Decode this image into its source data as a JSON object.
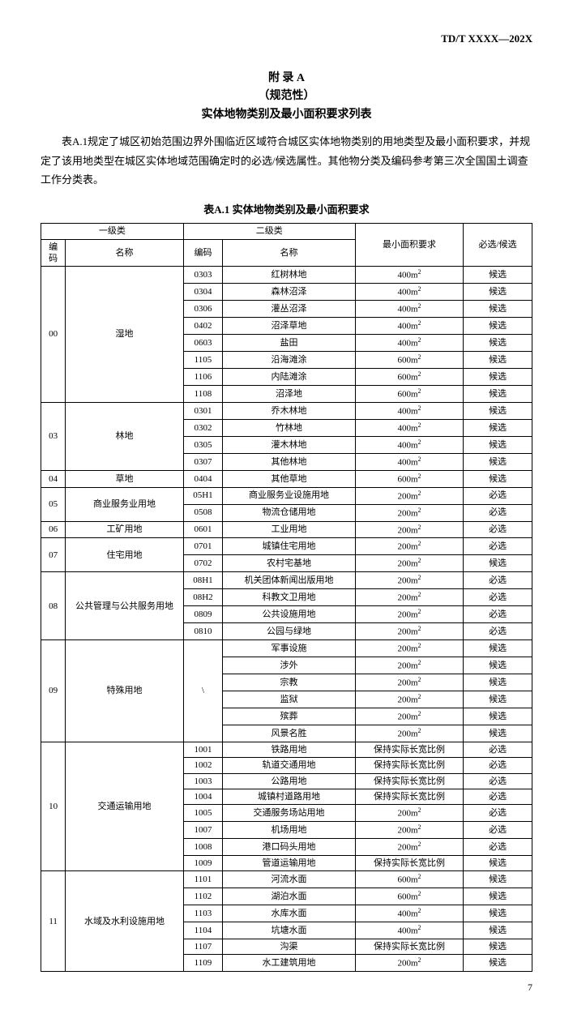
{
  "doc_number": "TD/T XXXX—202X",
  "appendix": {
    "line1": "附  录  A",
    "line2": "（规范性）",
    "line3": "实体地物类别及最小面积要求列表"
  },
  "intro": "表A.1规定了城区初始范围边界外围临近区域符合城区实体地物类别的用地类型及最小面积要求，并规定了该用地类型在城区实体地域范围确定时的必选/候选属性。其他物分类及编码参考第三次全国国土调查工作分类表。",
  "table_caption": "表A.1  实体地物类别及最小面积要求",
  "headers": {
    "level1": "一级类",
    "level2": "二级类",
    "code": "编码",
    "name": "名称",
    "area": "最小面积要求",
    "select": "必选/候选"
  },
  "groups": [
    {
      "code": "00",
      "name": "湿地",
      "rows": [
        {
          "c": "0303",
          "n": "红树林地",
          "a": "400m²",
          "s": "候选"
        },
        {
          "c": "0304",
          "n": "森林沼泽",
          "a": "400m²",
          "s": "候选"
        },
        {
          "c": "0306",
          "n": "灌丛沼泽",
          "a": "400m²",
          "s": "候选"
        },
        {
          "c": "0402",
          "n": "沼泽草地",
          "a": "400m²",
          "s": "候选"
        },
        {
          "c": "0603",
          "n": "盐田",
          "a": "400m²",
          "s": "候选"
        },
        {
          "c": "1105",
          "n": "沿海滩涂",
          "a": "600m²",
          "s": "候选"
        },
        {
          "c": "1106",
          "n": "内陆滩涂",
          "a": "600m²",
          "s": "候选"
        },
        {
          "c": "1108",
          "n": "沼泽地",
          "a": "600m²",
          "s": "候选"
        }
      ]
    },
    {
      "code": "03",
      "name": "林地",
      "rows": [
        {
          "c": "0301",
          "n": "乔木林地",
          "a": "400m²",
          "s": "候选"
        },
        {
          "c": "0302",
          "n": "竹林地",
          "a": "400m²",
          "s": "候选"
        },
        {
          "c": "0305",
          "n": "灌木林地",
          "a": "400m²",
          "s": "候选"
        },
        {
          "c": "0307",
          "n": "其他林地",
          "a": "400m²",
          "s": "候选"
        }
      ]
    },
    {
      "code": "04",
      "name": "草地",
      "rows": [
        {
          "c": "0404",
          "n": "其他草地",
          "a": "600m²",
          "s": "候选"
        }
      ]
    },
    {
      "code": "05",
      "name": "商业服务业用地",
      "rows": [
        {
          "c": "05H1",
          "n": "商业服务业设施用地",
          "a": "200m²",
          "s": "必选"
        },
        {
          "c": "0508",
          "n": "物流仓储用地",
          "a": "200m²",
          "s": "必选"
        }
      ]
    },
    {
      "code": "06",
      "name": "工矿用地",
      "rows": [
        {
          "c": "0601",
          "n": "工业用地",
          "a": "200m²",
          "s": "必选"
        }
      ]
    },
    {
      "code": "07",
      "name": "住宅用地",
      "rows": [
        {
          "c": "0701",
          "n": "城镇住宅用地",
          "a": "200m²",
          "s": "必选"
        },
        {
          "c": "0702",
          "n": "农村宅基地",
          "a": "200m²",
          "s": "候选"
        }
      ]
    },
    {
      "code": "08",
      "name": "公共管理与公共服务用地",
      "rows": [
        {
          "c": "08H1",
          "n": "机关团体新闻出版用地",
          "a": "200m²",
          "s": "必选"
        },
        {
          "c": "08H2",
          "n": "科教文卫用地",
          "a": "200m²",
          "s": "必选"
        },
        {
          "c": "0809",
          "n": "公共设施用地",
          "a": "200m²",
          "s": "必选"
        },
        {
          "c": "0810",
          "n": "公园与绿地",
          "a": "200m²",
          "s": "必选"
        }
      ]
    },
    {
      "code": "09",
      "name": "特殊用地",
      "l2code": "\\",
      "rows": [
        {
          "c": "",
          "n": "军事设施",
          "a": "200m²",
          "s": "候选"
        },
        {
          "c": "",
          "n": "涉外",
          "a": "200m²",
          "s": "候选"
        },
        {
          "c": "",
          "n": "宗教",
          "a": "200m²",
          "s": "候选"
        },
        {
          "c": "",
          "n": "监狱",
          "a": "200m²",
          "s": "候选"
        },
        {
          "c": "",
          "n": "殡葬",
          "a": "200m²",
          "s": "候选"
        },
        {
          "c": "",
          "n": "风景名胜",
          "a": "200m²",
          "s": "候选"
        }
      ]
    },
    {
      "code": "10",
      "name": "交通运输用地",
      "rows": [
        {
          "c": "1001",
          "n": "铁路用地",
          "a": "保持实际长宽比例",
          "s": "必选"
        },
        {
          "c": "1002",
          "n": "轨道交通用地",
          "a": "保持实际长宽比例",
          "s": "必选"
        },
        {
          "c": "1003",
          "n": "公路用地",
          "a": "保持实际长宽比例",
          "s": "必选"
        },
        {
          "c": "1004",
          "n": "城镇村道路用地",
          "a": "保持实际长宽比例",
          "s": "必选"
        },
        {
          "c": "1005",
          "n": "交通服务场站用地",
          "a": "200m²",
          "s": "必选"
        },
        {
          "c": "1007",
          "n": "机场用地",
          "a": "200m²",
          "s": "必选"
        },
        {
          "c": "1008",
          "n": "港口码头用地",
          "a": "200m²",
          "s": "必选"
        },
        {
          "c": "1009",
          "n": "管道运输用地",
          "a": "保持实际长宽比例",
          "s": "候选"
        }
      ]
    },
    {
      "code": "11",
      "name": "水域及水利设施用地",
      "rows": [
        {
          "c": "1101",
          "n": "河流水面",
          "a": "600m²",
          "s": "候选"
        },
        {
          "c": "1102",
          "n": "湖泊水面",
          "a": "600m²",
          "s": "候选"
        },
        {
          "c": "1103",
          "n": "水库水面",
          "a": "400m²",
          "s": "候选"
        },
        {
          "c": "1104",
          "n": "坑塘水面",
          "a": "400m²",
          "s": "候选"
        },
        {
          "c": "1107",
          "n": "沟渠",
          "a": "保持实际长宽比例",
          "s": "候选"
        },
        {
          "c": "1109",
          "n": "水工建筑用地",
          "a": "200m²",
          "s": "候选"
        }
      ]
    }
  ],
  "page_number": "7"
}
